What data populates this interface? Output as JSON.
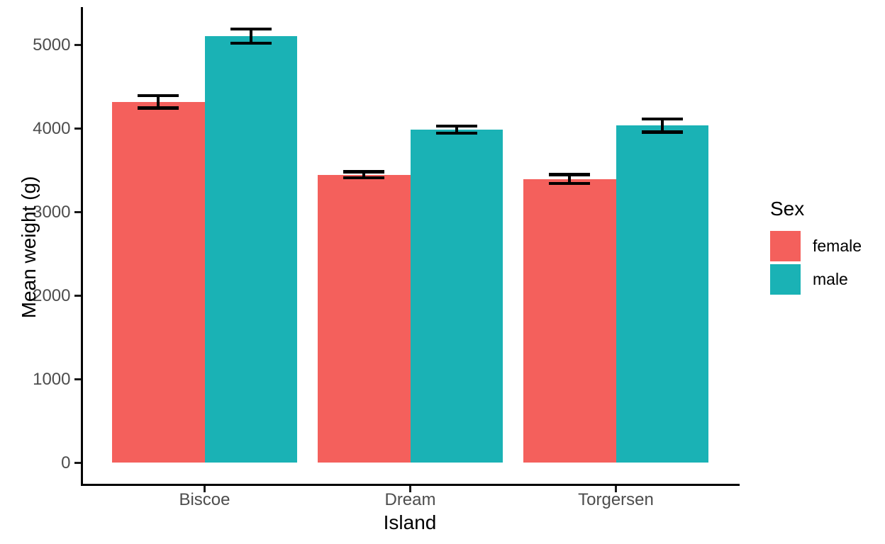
{
  "chart_data": {
    "type": "bar",
    "title": "",
    "xlabel": "Island",
    "ylabel": "Mean weight (g)",
    "categories": [
      "Biscoe",
      "Dream",
      "Torgersen"
    ],
    "series": [
      {
        "name": "female",
        "color": "#F4605C",
        "values": [
          4319,
          3446,
          3396
        ],
        "error_low": [
          4244,
          3412,
          3343
        ],
        "error_high": [
          4394,
          3481,
          3449
        ]
      },
      {
        "name": "male",
        "color": "#1AB2B5",
        "values": [
          5105,
          3987,
          4035
        ],
        "error_low": [
          5020,
          3943,
          3957
        ],
        "error_high": [
          5189,
          4031,
          4113
        ]
      }
    ],
    "y_ticks": [
      0,
      1000,
      2000,
      3000,
      4000,
      5000
    ],
    "ylim": [
      -271,
      5453
    ],
    "grid": false,
    "theme": "classic",
    "bar_layout": "dodged",
    "error_bar_style": "mean ± se caps",
    "legend": {
      "title": "Sex",
      "position": "right",
      "entries": [
        "female",
        "male"
      ]
    }
  },
  "colors": {
    "background": "#FFFFFF",
    "female": "#F4605C",
    "male": "#1AB2B5",
    "axis_text": "#4D4D4D",
    "axis_title": "#000000",
    "axis_line": "#000000",
    "error_bar": "#000000"
  }
}
